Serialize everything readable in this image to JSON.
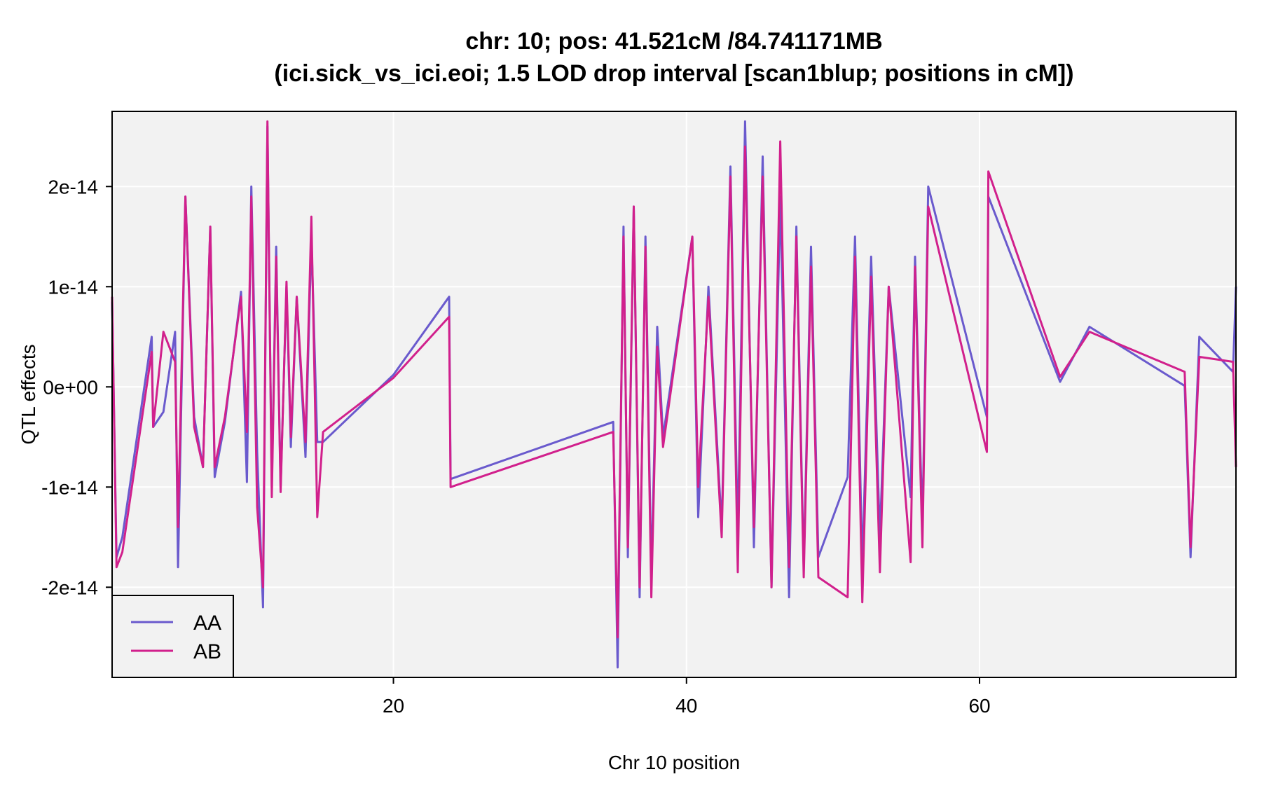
{
  "chart_data": {
    "type": "line",
    "title": "chr: 10; pos: 41.521cM /84.741171MB",
    "subtitle": "(ici.sick_vs_ici.eoi; 1.5 LOD drop interval [scan1blup; positions in cM])",
    "xlabel": "Chr 10 position",
    "ylabel": "QTL effects",
    "xlim": [
      0.8,
      77.5
    ],
    "ylim": [
      -2.9e-14,
      2.75e-14
    ],
    "x_ticks": [
      20,
      40,
      60
    ],
    "x_tick_labels": [
      "20",
      "40",
      "60"
    ],
    "y_ticks": [
      -2e-14,
      -1e-14,
      0,
      1e-14,
      2e-14
    ],
    "y_tick_labels": [
      "-2e-14",
      "-1e-14",
      "0e+00",
      "1e-14",
      "2e-14"
    ],
    "grid": true,
    "legend_position": "bottom-left",
    "background": "#f2f2f2",
    "x": [
      0.8,
      1.1,
      1.5,
      3.5,
      3.6,
      4.3,
      5.1,
      5.3,
      5.8,
      6.4,
      7.0,
      7.5,
      7.8,
      8.5,
      9.6,
      10.0,
      10.3,
      10.7,
      11.1,
      11.4,
      11.7,
      12.0,
      12.3,
      12.7,
      13.0,
      13.4,
      14.0,
      14.4,
      14.8,
      15.2,
      20.0,
      23.8,
      23.9,
      35.0,
      35.3,
      35.7,
      36.0,
      36.4,
      36.8,
      37.2,
      37.6,
      38.0,
      38.4,
      40.4,
      40.8,
      41.5,
      42.4,
      43.0,
      43.5,
      44.0,
      44.6,
      45.2,
      45.8,
      46.4,
      47.0,
      47.5,
      48.0,
      48.5,
      49.0,
      51.0,
      51.5,
      52.0,
      52.6,
      53.2,
      53.8,
      55.3,
      55.6,
      56.1,
      56.5,
      60.5,
      60.6,
      65.5,
      67.5,
      74.0,
      74.4,
      75.0,
      77.3,
      77.5
    ],
    "series": [
      {
        "name": "AA",
        "color": "#6a5acd",
        "values": [
          8.5e-15,
          -1.7e-14,
          -1.5e-14,
          5e-15,
          -4e-15,
          -2.5e-15,
          5.5e-15,
          -1.8e-14,
          1.9e-14,
          -3e-15,
          -8e-15,
          1.6e-14,
          -9e-15,
          -3.5e-15,
          9.5e-15,
          -9.5e-15,
          2e-14,
          -6.5e-15,
          -2.2e-14,
          2.6e-14,
          -1e-14,
          1.4e-14,
          -1e-14,
          1e-14,
          -6e-15,
          9e-15,
          -7e-15,
          1.5e-14,
          -5.5e-15,
          -5.5e-15,
          1.2e-15,
          9e-15,
          -9.2e-15,
          -3.5e-15,
          -2.8e-14,
          1.6e-14,
          -1.7e-14,
          1.8e-14,
          -2.1e-14,
          1.5e-14,
          -1.9e-14,
          6e-15,
          -5e-15,
          1.5e-14,
          -1.3e-14,
          1e-14,
          -1.4e-14,
          2.2e-14,
          -1.5e-14,
          2.65e-14,
          -1.6e-14,
          2.3e-14,
          -2e-14,
          1.9e-14,
          -2.1e-14,
          1.6e-14,
          -1.8e-14,
          1.4e-14,
          -1.7e-14,
          -9e-15,
          1.5e-14,
          -1.8e-14,
          1.3e-14,
          -1.5e-14,
          1e-14,
          -1.1e-14,
          1.3e-14,
          -1.4e-14,
          2e-14,
          -3e-15,
          1.9e-14,
          5e-16,
          6e-15,
          1e-16,
          -1.7e-14,
          5e-15,
          1.5e-15,
          1e-14
        ]
      },
      {
        "name": "AB",
        "color": "#d1208c",
        "values": [
          9e-15,
          -1.8e-14,
          -1.65e-14,
          3.5e-15,
          -4e-15,
          5.5e-15,
          2.5e-15,
          -1.4e-14,
          1.9e-14,
          -4e-15,
          -8e-15,
          1.6e-14,
          -8e-15,
          -3e-15,
          9e-15,
          -4.5e-15,
          1.9e-14,
          -1.2e-14,
          -2e-14,
          2.65e-14,
          -1.1e-14,
          1.3e-14,
          -1.05e-14,
          1.05e-14,
          -5e-15,
          9e-15,
          -5.5e-15,
          1.7e-14,
          -1.3e-14,
          -4.5e-15,
          9e-16,
          7e-15,
          -1e-14,
          -4.5e-15,
          -2.5e-14,
          1.5e-14,
          -1.6e-14,
          1.8e-14,
          -2e-14,
          1.4e-14,
          -2.1e-14,
          4e-15,
          -6e-15,
          1.5e-14,
          -1e-14,
          9e-15,
          -1.5e-14,
          2.1e-14,
          -1.85e-14,
          2.4e-14,
          -1.4e-14,
          2.1e-14,
          -2e-14,
          2.45e-14,
          -1.8e-14,
          1.5e-14,
          -1.9e-14,
          1.2e-14,
          -1.9e-14,
          -2.1e-14,
          1.3e-14,
          -2.15e-14,
          1.1e-14,
          -1.85e-14,
          1e-14,
          -1.75e-14,
          1.2e-14,
          -1.6e-14,
          1.8e-14,
          -6.5e-15,
          2.15e-14,
          1e-15,
          5.5e-15,
          1.5e-15,
          -1.6e-14,
          3e-15,
          2.5e-15,
          -8e-15
        ]
      }
    ]
  }
}
